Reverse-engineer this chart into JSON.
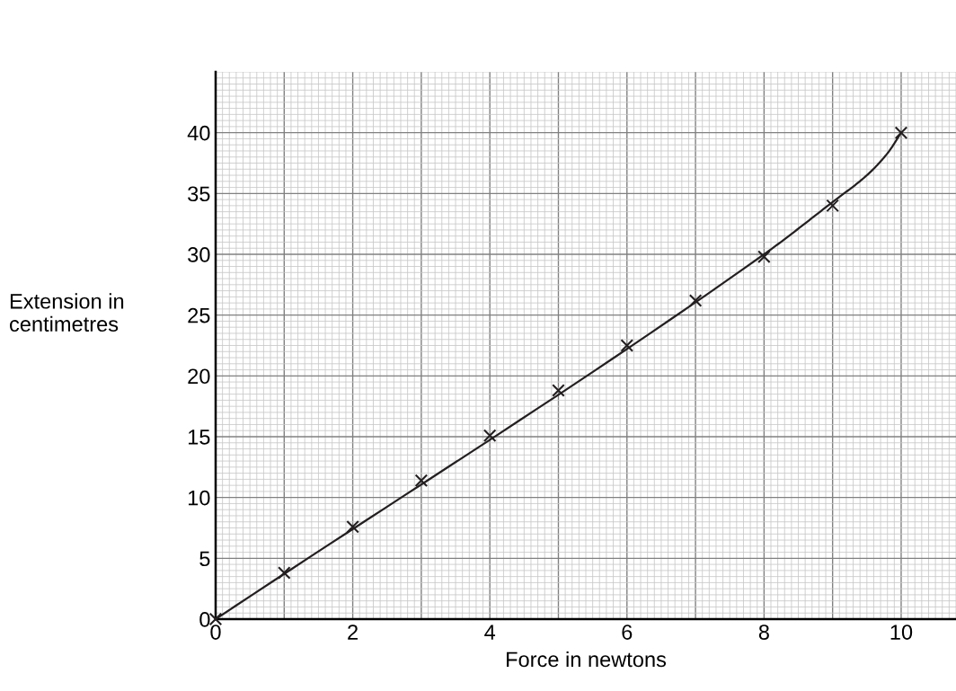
{
  "chart_data": {
    "type": "scatter",
    "xlabel": "Force in newtons",
    "ylabel": "Extension in\ncentimetres",
    "xlim": [
      0,
      10.8
    ],
    "ylim": [
      0,
      45
    ],
    "xticks": [
      0,
      {
        "value": 1,
        "label": null
      },
      2,
      {
        "value": 3,
        "label": null
      },
      4,
      {
        "value": 5,
        "label": null
      },
      6,
      {
        "value": 7,
        "label": null
      },
      8,
      {
        "value": 9,
        "label": null
      },
      10
    ],
    "yticks": [
      0,
      5,
      10,
      15,
      20,
      25,
      30,
      35,
      40
    ],
    "grid": true,
    "series": [
      {
        "color": "#231f20",
        "marker": "cross",
        "x": [
          0,
          1,
          2,
          3,
          4,
          5,
          6,
          7,
          8,
          9,
          10
        ],
        "values": [
          0,
          3.8,
          7.6,
          11.4,
          15.1,
          18.8,
          22.5,
          26.2,
          29.8,
          34,
          40
        ]
      },
      {
        "type": "line",
        "color": "#231f20",
        "marker": "none",
        "line_style": "solid",
        "x": [
          0,
          8,
          9,
          9.5,
          9.8,
          10
        ],
        "values": [
          0,
          30,
          34.3,
          36.5,
          38.3,
          40
        ]
      }
    ]
  }
}
